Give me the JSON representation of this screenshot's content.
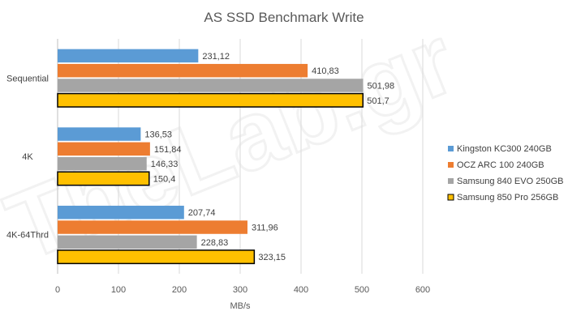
{
  "chart_data": {
    "type": "bar",
    "orientation": "horizontal",
    "title": "AS SSD Benchmark Write",
    "xlabel": "MB/s",
    "ylabel": "",
    "xlim": [
      0,
      600
    ],
    "xticks": [
      "0",
      "100",
      "200",
      "300",
      "400",
      "500",
      "600"
    ],
    "grid": true,
    "legend_position": "right",
    "categories": [
      "Sequential",
      "4K",
      "4K-64Thrd"
    ],
    "series": [
      {
        "name": "Kingston KC300 240GB",
        "color": "#5b9bd5",
        "values": [
          231.12,
          136.53,
          207.74
        ],
        "labels": [
          "231,12",
          "136,53",
          "207,74"
        ]
      },
      {
        "name": "OCZ ARC 100 240GB",
        "color": "#ed7d31",
        "values": [
          410.83,
          151.84,
          311.96
        ],
        "labels": [
          "410,83",
          "151,84",
          "311,96"
        ]
      },
      {
        "name": "Samsung 840 EVO 250GB",
        "color": "#a5a5a5",
        "values": [
          501.98,
          146.33,
          228.83
        ],
        "labels": [
          "501,98",
          "146,33",
          "228,83"
        ]
      },
      {
        "name": "Samsung 850 Pro 256GB",
        "color": "#ffc000",
        "outline": "#000000",
        "values": [
          501.7,
          150.4,
          323.15
        ],
        "labels": [
          "501,7",
          "150,4",
          "323,15"
        ]
      }
    ],
    "watermark": "TheLab.gr"
  }
}
